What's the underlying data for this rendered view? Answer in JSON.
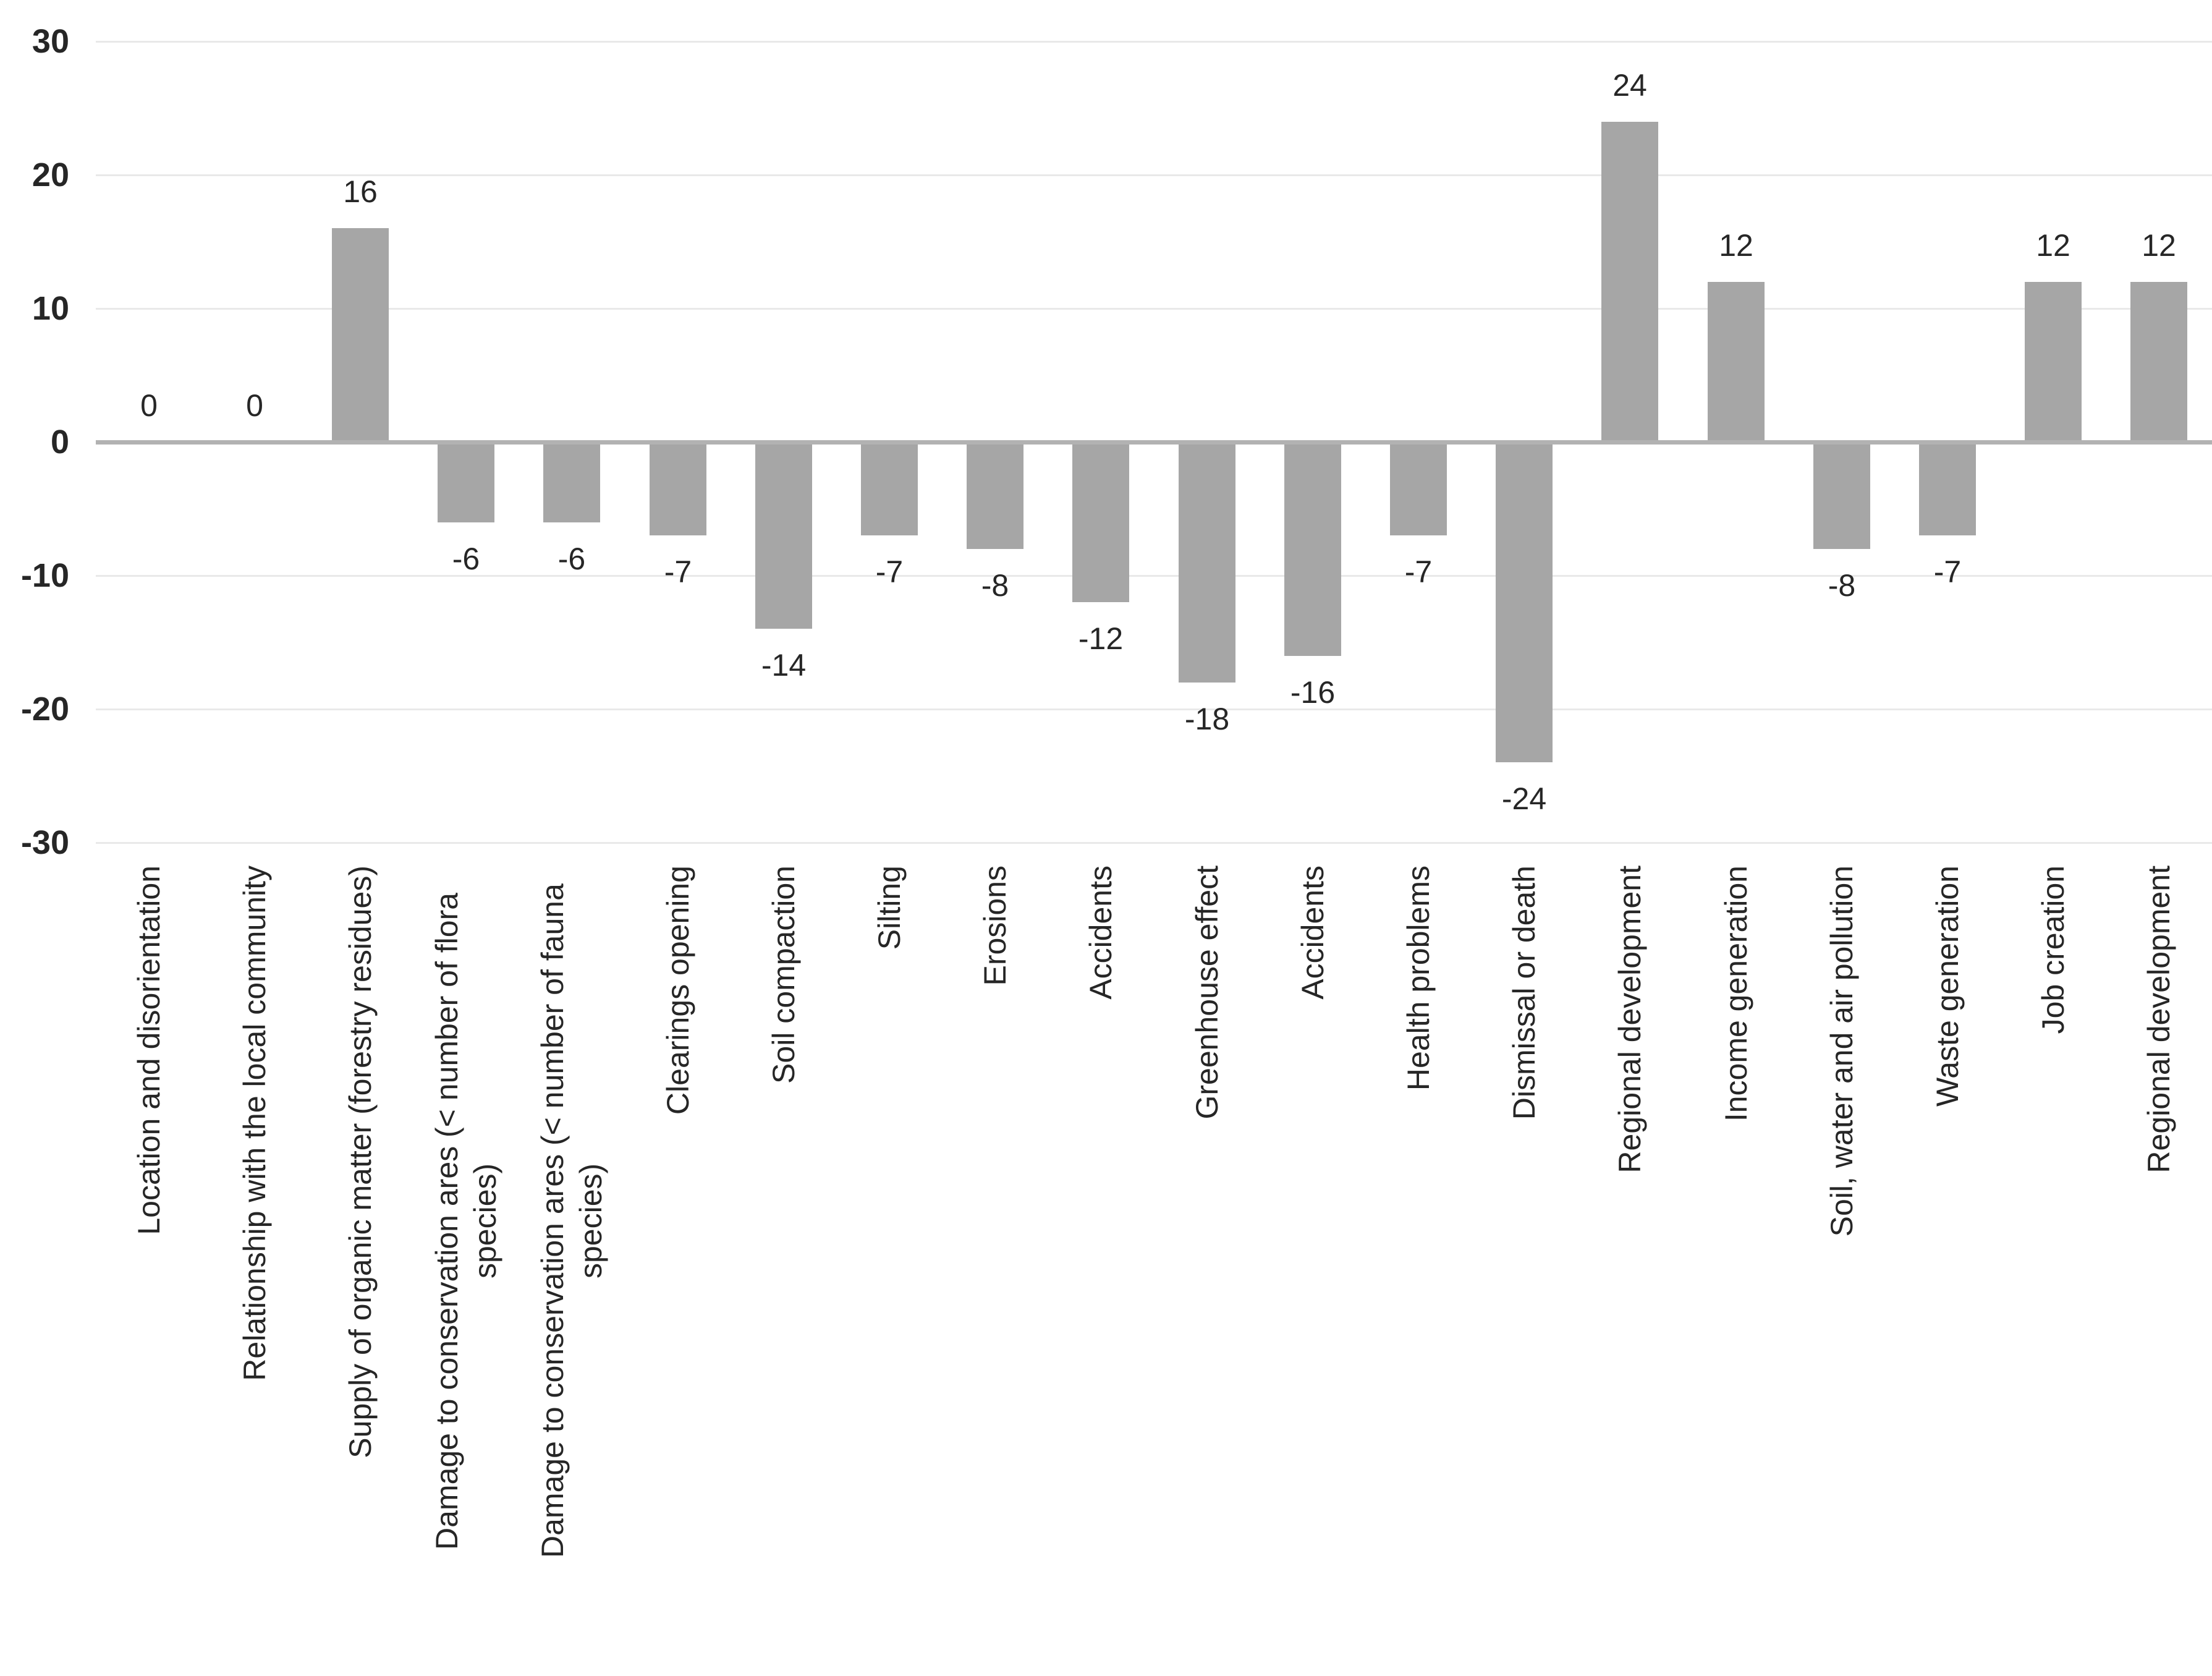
{
  "chart_data": {
    "type": "bar",
    "title": "",
    "xlabel": "",
    "ylabel": "",
    "categories": [
      "Location and disorientation",
      "Relationship with the local community",
      "Supply of organic matter (forestry residues)",
      "Damage to conservation ares (< number of flora species)",
      "Damage to conservation ares (< number of fauna species)",
      "Clearings opening",
      "Soil compaction",
      "Silting",
      "Erosions",
      "Accidents",
      "Greenhouse effect",
      "Accidents",
      "Health problems",
      "Dismissal or death",
      "Regional development",
      "Income generation",
      "Soil, water and air pollution",
      "Waste generation",
      "Job creation",
      "Regional development"
    ],
    "values": [
      0,
      0,
      16,
      -6,
      -6,
      -7,
      -14,
      -7,
      -8,
      -12,
      -18,
      -16,
      -7,
      -24,
      24,
      12,
      -8,
      -7,
      12,
      12
    ],
    "data_labels": [
      "0",
      "0",
      "16",
      "-6",
      "-6",
      "-7",
      "-14",
      "-7",
      "-8",
      "-12",
      "-18",
      "-16",
      "-7",
      "-24",
      "24",
      "12",
      "-8",
      "-7",
      "12",
      "12"
    ],
    "ylim": [
      -30,
      30
    ],
    "yticks": [
      30,
      20,
      10,
      0,
      -10,
      -20,
      -30
    ],
    "grid": true,
    "legend": false,
    "bar_color": "#a6a6a6",
    "gridline_color": "#e9e9e9",
    "zero_line_color": "#b2b2b2",
    "text_color": "#262626"
  }
}
